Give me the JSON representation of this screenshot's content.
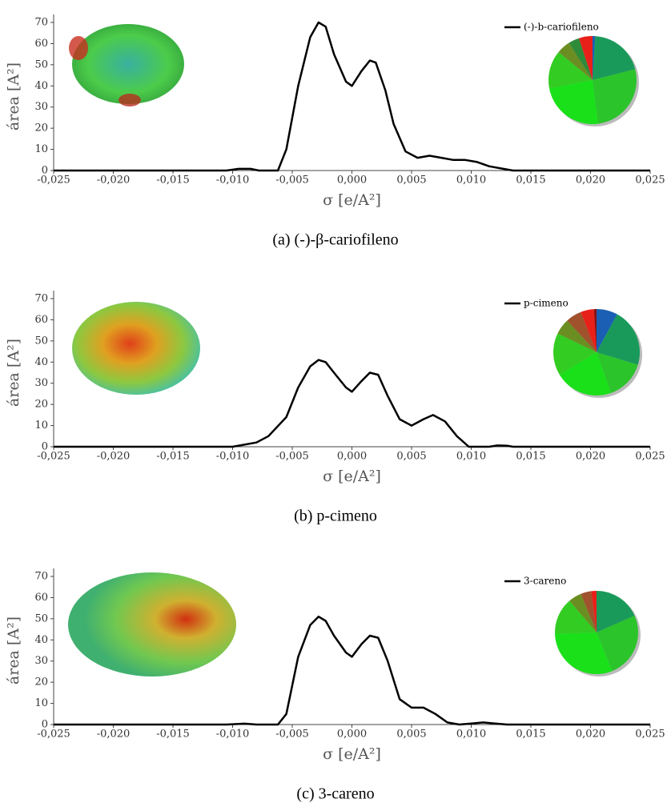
{
  "chart_data": [
    {
      "type": "line",
      "ylabel": "área [A²]",
      "xlabel": "σ [e/A²]",
      "caption": "(a) (-)-β-cariofileno",
      "x": [
        -0.025,
        -0.0105,
        -0.0095,
        -0.0085,
        -0.0078,
        -0.0062,
        -0.0055,
        -0.0045,
        -0.0035,
        -0.0028,
        -0.0022,
        -0.0015,
        -0.0005,
        0.0,
        0.0008,
        0.0015,
        0.002,
        0.0028,
        0.0035,
        0.0045,
        0.0055,
        0.0065,
        0.0075,
        0.0085,
        0.0095,
        0.0105,
        0.0115,
        0.0125,
        0.0135,
        0.025
      ],
      "series": [
        {
          "name": "(-)-b-cariofileno",
          "color": "#000000",
          "values": [
            0,
            0,
            0.8,
            0.8,
            0,
            0,
            10,
            40,
            63,
            70,
            68,
            55,
            42,
            40,
            47,
            52,
            51,
            38,
            22,
            9,
            6,
            7,
            6,
            5,
            5,
            4,
            2,
            1,
            0,
            0
          ]
        }
      ],
      "xlim": [
        -0.025,
        0.025
      ],
      "ylim": [
        0,
        70
      ],
      "xticks": [
        {
          "value": -0.025,
          "label": "-0,025"
        },
        {
          "value": -0.02,
          "label": "-0,020"
        },
        {
          "value": -0.015,
          "label": "-0,015"
        },
        {
          "value": -0.01,
          "label": "-0,010"
        },
        {
          "value": -0.005,
          "label": "-0,005"
        },
        {
          "value": 0,
          "label": "0,000"
        },
        {
          "value": 0.005,
          "label": "0,005"
        },
        {
          "value": 0.01,
          "label": "0,010"
        },
        {
          "value": 0.015,
          "label": "0,015"
        },
        {
          "value": 0.02,
          "label": "0,020"
        },
        {
          "value": 0.025,
          "label": "0,025"
        }
      ],
      "yticks": [
        0,
        10,
        20,
        30,
        40,
        50,
        60,
        70
      ],
      "pie": {
        "values": [
          1,
          20,
          27,
          24,
          14,
          5,
          4,
          5
        ],
        "colors": [
          "#1a5fb4",
          "#1a9a5a",
          "#2bc42b",
          "#19e019",
          "#33cc22",
          "#6b8e23",
          "#2e8b3a",
          "#e8201a"
        ]
      }
    },
    {
      "type": "line",
      "ylabel": "área [A²]",
      "xlabel": "σ [e/A²]",
      "caption": "(b) p-cimeno",
      "x": [
        -0.025,
        -0.01,
        -0.008,
        -0.007,
        -0.0055,
        -0.0045,
        -0.0035,
        -0.0028,
        -0.0022,
        -0.0015,
        -0.0005,
        0.0,
        0.0008,
        0.0015,
        0.0022,
        0.003,
        0.004,
        0.005,
        0.006,
        0.0068,
        0.0078,
        0.0088,
        0.0098,
        0.0115,
        0.0122,
        0.013,
        0.0135,
        0.025
      ],
      "series": [
        {
          "name": "p-cimeno",
          "color": "#000000",
          "values": [
            0,
            0,
            2,
            5,
            14,
            28,
            38,
            41,
            40,
            35,
            28,
            26,
            31,
            35,
            34,
            24,
            13,
            10,
            13,
            15,
            12,
            5,
            0,
            0,
            0.6,
            0.5,
            0,
            0
          ]
        }
      ],
      "xlim": [
        -0.025,
        0.025
      ],
      "ylim": [
        0,
        70
      ],
      "xticks": [
        {
          "value": -0.025,
          "label": "-0,025"
        },
        {
          "value": -0.02,
          "label": "-0,020"
        },
        {
          "value": -0.015,
          "label": "-0,015"
        },
        {
          "value": -0.01,
          "label": "-0,010"
        },
        {
          "value": -0.005,
          "label": "-0,005"
        },
        {
          "value": 0,
          "label": "0,000"
        },
        {
          "value": 0.005,
          "label": "0,005"
        },
        {
          "value": 0.01,
          "label": "0,010"
        },
        {
          "value": 0.015,
          "label": "0,015"
        },
        {
          "value": 0.02,
          "label": "0,020"
        },
        {
          "value": 0.025,
          "label": "0,025"
        }
      ],
      "yticks": [
        0,
        10,
        20,
        30,
        40,
        50,
        60,
        70
      ],
      "pie": {
        "values": [
          8,
          22,
          15,
          22,
          16,
          6,
          6,
          5,
          1
        ],
        "colors": [
          "#1a5fb4",
          "#1a9a5a",
          "#2bc42b",
          "#19e019",
          "#33cc22",
          "#6b8e23",
          "#a0522d",
          "#e8201a",
          "#8b1010"
        ]
      }
    },
    {
      "type": "line",
      "ylabel": "área [A²]",
      "xlabel": "σ [e/A²]",
      "caption": "(c) 3-careno",
      "x": [
        -0.025,
        -0.0105,
        -0.009,
        -0.008,
        -0.0062,
        -0.0055,
        -0.0045,
        -0.0035,
        -0.0028,
        -0.0022,
        -0.0015,
        -0.0005,
        0.0,
        0.0008,
        0.0015,
        0.0022,
        0.003,
        0.004,
        0.005,
        0.006,
        0.007,
        0.008,
        0.009,
        0.01,
        0.011,
        0.012,
        0.013,
        0.025
      ],
      "series": [
        {
          "name": "3-careno",
          "color": "#000000",
          "values": [
            0,
            0,
            0.4,
            0,
            0,
            5,
            32,
            47,
            51,
            49,
            42,
            34,
            32,
            38,
            42,
            41,
            30,
            12,
            8,
            8,
            5,
            1,
            0,
            0.5,
            1,
            0.5,
            0,
            0
          ]
        }
      ],
      "xlim": [
        -0.025,
        0.025
      ],
      "ylim": [
        0,
        70
      ],
      "xticks": [
        {
          "value": -0.025,
          "label": "-0,025"
        },
        {
          "value": -0.02,
          "label": "-0,020"
        },
        {
          "value": -0.015,
          "label": "-0,015"
        },
        {
          "value": -0.01,
          "label": "-0,010"
        },
        {
          "value": -0.005,
          "label": "-0,005"
        },
        {
          "value": 0,
          "label": "0,000"
        },
        {
          "value": 0.005,
          "label": "0,005"
        },
        {
          "value": 0.01,
          "label": "0,010"
        },
        {
          "value": 0.015,
          "label": "0,015"
        },
        {
          "value": 0.02,
          "label": "0,020"
        },
        {
          "value": 0.025,
          "label": "0,025"
        }
      ],
      "yticks": [
        0,
        10,
        20,
        30,
        40,
        50,
        60,
        70
      ],
      "pie": {
        "values": [
          18,
          25,
          30,
          14,
          5,
          4,
          2
        ],
        "colors": [
          "#1a9a5a",
          "#2bc42b",
          "#19e019",
          "#33cc22",
          "#6b8e23",
          "#a0522d",
          "#e8201a"
        ]
      }
    }
  ]
}
